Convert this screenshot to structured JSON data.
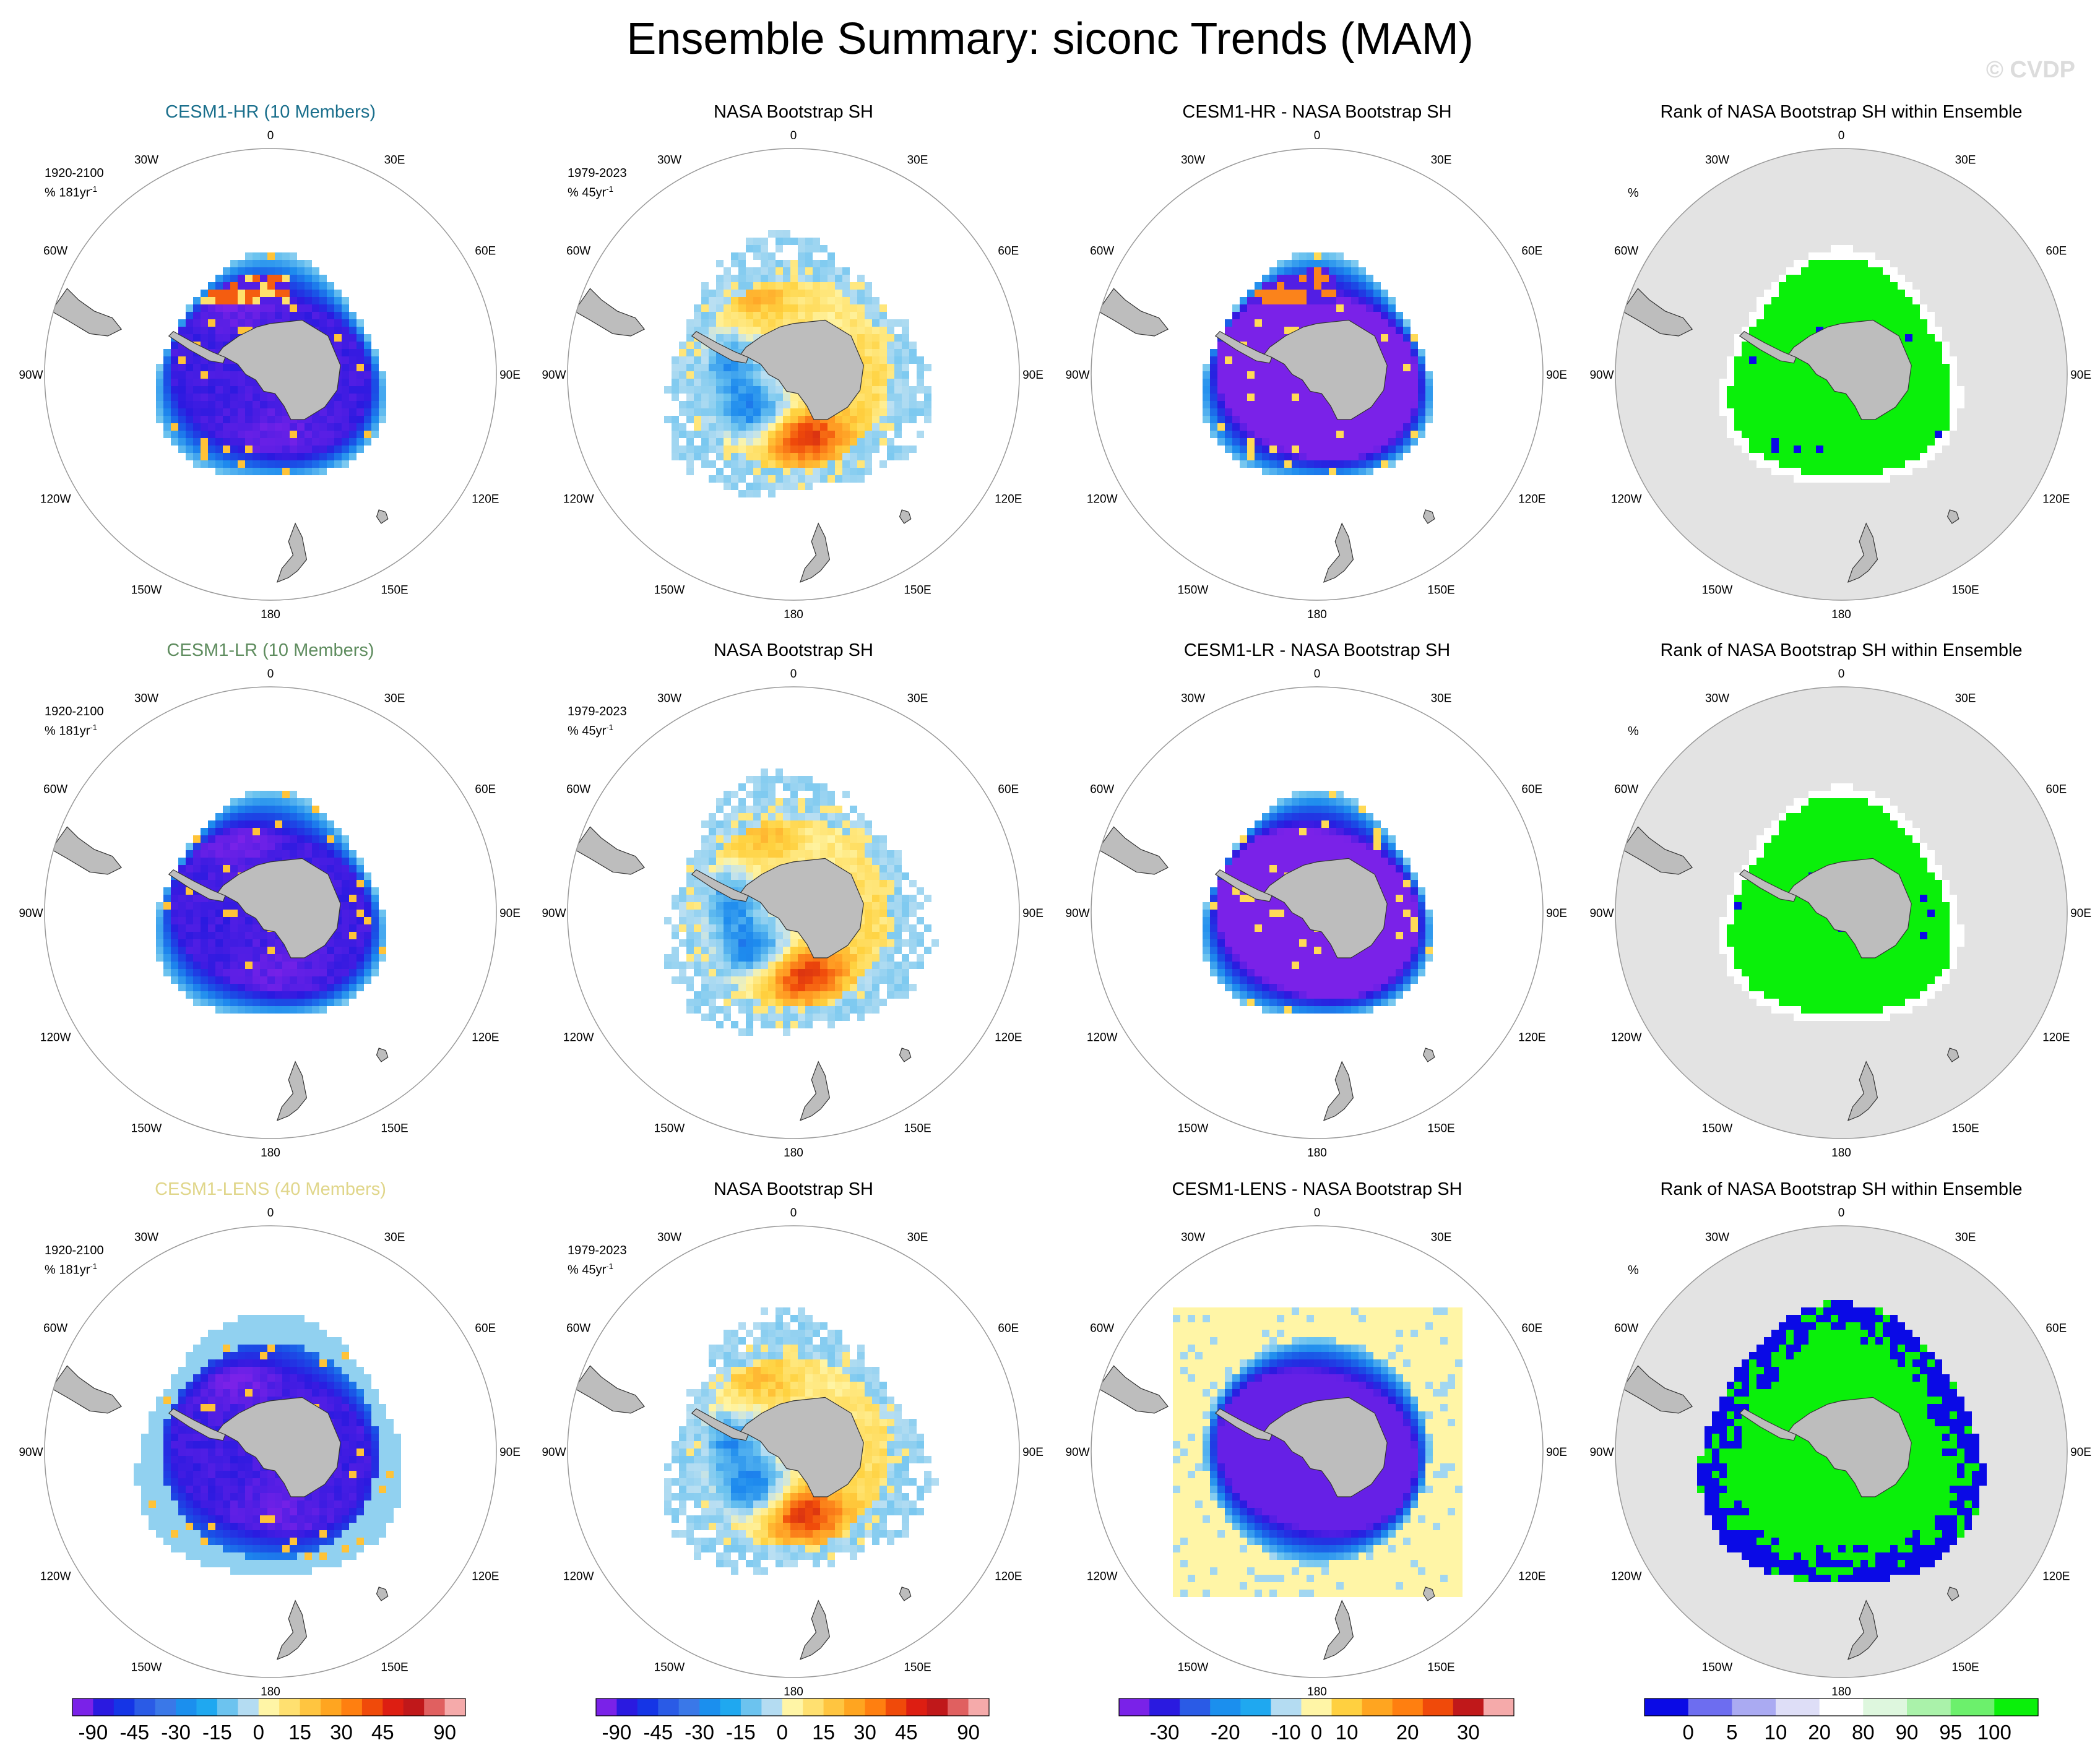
{
  "title": "Ensemble Summary: siconc Trends (MAM)",
  "watermark": "© CVDP",
  "colors": {
    "land": "#bdbdbd",
    "rank_background": "#e3e3e3",
    "hr_title": "#1a6f8c",
    "lr_title": "#5e8c5e",
    "lens_title": "#e0d68a"
  },
  "panel_titles": {
    "hr_model": "CESM1-HR (10 Members)",
    "lr_model": "CESM1-LR (10 Members)",
    "lens_model": "CESM1-LENS (40 Members)",
    "obs": "NASA Bootstrap SH",
    "hr_diff": "CESM1-HR - NASA Bootstrap SH",
    "lr_diff": "CESM1-LR - NASA Bootstrap SH",
    "lens_diff": "CESM1-LENS - NASA Bootstrap SH",
    "rank": "Rank of NASA Bootstrap SH within Ensemble"
  },
  "panel_info": {
    "model_period": "1920-2100",
    "model_units": "% 181yr",
    "obs_period": "1979-2023",
    "obs_units": "% 45yr",
    "unit_sup": "-1",
    "rank_units": "%"
  },
  "longitude_labels": [
    "0",
    "30E",
    "60E",
    "90E",
    "120E",
    "150E",
    "180",
    "150W",
    "120W",
    "90W",
    "60W",
    "30W"
  ],
  "chart_data": [
    {
      "type": "heatmap",
      "projection": "south-polar-stereographic",
      "variable": "siconc trend",
      "panels": [
        {
          "row": 1,
          "col": 1,
          "title": "CESM1-HR (10 Members)",
          "period": "1920-2100",
          "units": "% 181yr-1"
        },
        {
          "row": 1,
          "col": 2,
          "title": "NASA Bootstrap SH",
          "period": "1979-2023",
          "units": "% 45yr-1"
        },
        {
          "row": 1,
          "col": 3,
          "title": "CESM1-HR - NASA Bootstrap SH"
        },
        {
          "row": 1,
          "col": 4,
          "title": "Rank of NASA Bootstrap SH within Ensemble",
          "units": "%"
        },
        {
          "row": 2,
          "col": 1,
          "title": "CESM1-LR (10 Members)",
          "period": "1920-2100",
          "units": "% 181yr-1"
        },
        {
          "row": 2,
          "col": 2,
          "title": "NASA Bootstrap SH",
          "period": "1979-2023",
          "units": "% 45yr-1"
        },
        {
          "row": 2,
          "col": 3,
          "title": "CESM1-LR - NASA Bootstrap SH"
        },
        {
          "row": 2,
          "col": 4,
          "title": "Rank of NASA Bootstrap SH within Ensemble",
          "units": "%"
        },
        {
          "row": 3,
          "col": 1,
          "title": "CESM1-LENS (40 Members)",
          "period": "1920-2100",
          "units": "% 181yr-1"
        },
        {
          "row": 3,
          "col": 2,
          "title": "NASA Bootstrap SH",
          "period": "1979-2023",
          "units": "% 45yr-1"
        },
        {
          "row": 3,
          "col": 3,
          "title": "CESM1-LENS - NASA Bootstrap SH"
        },
        {
          "row": 3,
          "col": 4,
          "title": "Rank of NASA Bootstrap SH within Ensemble",
          "units": "%"
        }
      ],
      "colorbars": [
        {
          "name": "trend",
          "ticks": [
            "-90",
            "-45",
            "-30",
            "-15",
            "0",
            "15",
            "30",
            "45",
            "90"
          ],
          "colors": [
            "#7a22e8",
            "#2a1ae0",
            "#1535e6",
            "#2a5be6",
            "#3a78e8",
            "#1b8fee",
            "#1fa8f0",
            "#6cc3ef",
            "#b4dcf2",
            "#fff5a6",
            "#ffe070",
            "#ffc540",
            "#ffa520",
            "#ff7f10",
            "#f04a0a",
            "#dd1e12",
            "#c0181a",
            "#e06060",
            "#f5aaaa"
          ]
        },
        {
          "name": "difference",
          "ticks": [
            "-30",
            "-20",
            "-10",
            "0",
            "10",
            "20",
            "30"
          ],
          "colors": [
            "#7a22e8",
            "#2a1ae0",
            "#2a5be6",
            "#1b8fee",
            "#1fa8f0",
            "#b4dcf2",
            "#fff5a6",
            "#ffd040",
            "#ffa520",
            "#ff7f10",
            "#f04a0a",
            "#c0181a",
            "#f5aaaa"
          ]
        },
        {
          "name": "rank",
          "ticks": [
            "0",
            "5",
            "10",
            "20",
            "80",
            "90",
            "95",
            "100"
          ],
          "colors": [
            "#0a0ae6",
            "#6d6df0",
            "#aaaaf2",
            "#dedef7",
            "#ffffff",
            "#def7de",
            "#aaf2aa",
            "#6cf06c",
            "#0af00a"
          ]
        }
      ]
    }
  ]
}
